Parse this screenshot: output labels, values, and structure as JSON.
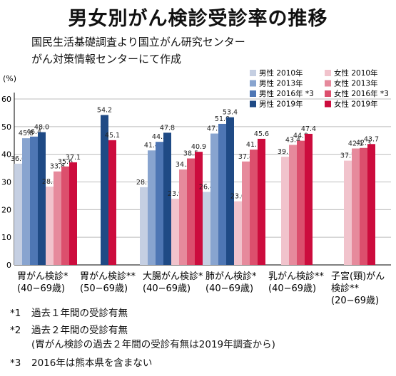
{
  "title": "男女別がん検診受診率の推移",
  "source_lines": [
    "国民生活基礎調査より国立がん研究センター",
    "がん対策情報センターにて作成"
  ],
  "footnotes": [
    {
      "mark": "*1",
      "lines": [
        "過去１年間の受診有無"
      ]
    },
    {
      "mark": "*2",
      "lines": [
        "過去２年間の受診有無",
        "(胃がん検診の過去２年間の受診有無は2019年調査から)"
      ]
    },
    {
      "mark": "*3",
      "lines": [
        "2016年は熊本県を含まない"
      ]
    }
  ],
  "chart_data": {
    "type": "bar",
    "ylabel": "(%)",
    "ylim": [
      0,
      60
    ],
    "yticks": [
      0,
      10,
      20,
      30,
      40,
      50,
      60
    ],
    "grid": true,
    "legend_position": "top-right",
    "categories": [
      {
        "lines": [
          "胃がん検診*",
          "(40−69歳)"
        ]
      },
      {
        "lines": [
          "胃がん検診**",
          "(50−69歳)"
        ]
      },
      {
        "lines": [
          "大腸がん検診*",
          "(40−69歳)"
        ]
      },
      {
        "lines": [
          "肺がん検診*",
          "(40−69歳)"
        ]
      },
      {
        "lines": [
          "乳がん検診**",
          "(40−69歳)"
        ]
      },
      {
        "lines": [
          "子宮(頸)がん",
          "検診**",
          "(20−69歳)"
        ]
      }
    ],
    "series": [
      {
        "name": "男性 2010年",
        "sex": "male",
        "color": "#c5cfe2",
        "values": [
          36.6,
          null,
          28.1,
          26.4,
          null,
          null
        ],
        "labels": [
          "36.6",
          "",
          "28.1",
          "26.4",
          "",
          ""
        ]
      },
      {
        "name": "男性 2013年",
        "sex": "male",
        "color": "#88a4cf",
        "values": [
          45.8,
          null,
          41.4,
          47.5,
          null,
          null
        ],
        "labels": [
          "45.8",
          "",
          "41.4",
          "47.5",
          "",
          ""
        ]
      },
      {
        "name": "男性 2016年 *3",
        "sex": "male",
        "color": "#4e76b4",
        "values": [
          46.4,
          null,
          44.5,
          51.0,
          null,
          null
        ],
        "labels": [
          "46.4",
          "",
          "44.5",
          "51.0",
          "",
          ""
        ]
      },
      {
        "name": "男性 2019年",
        "sex": "male",
        "color": "#1f4a85",
        "values": [
          48.0,
          54.2,
          47.8,
          53.4,
          null,
          null
        ],
        "labels": [
          "48.0",
          "54.2",
          "47.8",
          "53.4",
          "",
          ""
        ]
      },
      {
        "name": "女性 2010年",
        "sex": "female",
        "color": "#f1c3cc",
        "values": [
          28.3,
          null,
          23.9,
          23.0,
          39.1,
          37.7
        ],
        "labels": [
          "28.3",
          "",
          "23.9",
          "23.0",
          "39.1",
          "37.7"
        ]
      },
      {
        "name": "女性 2013年",
        "sex": "female",
        "color": "#e68a9c",
        "values": [
          33.8,
          null,
          34.5,
          37.4,
          43.4,
          42.1
        ],
        "labels": [
          "33.8",
          "",
          "34.5",
          "37.4",
          "43.4",
          "42.1"
        ]
      },
      {
        "name": "女性 2016年 *3",
        "sex": "female",
        "color": "#dc4f6d",
        "values": [
          35.6,
          null,
          38.5,
          41.7,
          44.9,
          42.3
        ],
        "labels": [
          "35.6",
          "",
          "38.5",
          "41.7",
          "44.9",
          "42.3"
        ]
      },
      {
        "name": "女性 2019年",
        "sex": "female",
        "color": "#cc0c3d",
        "values": [
          37.1,
          45.1,
          40.9,
          45.6,
          47.4,
          43.7
        ],
        "labels": [
          "37.1",
          "45.1",
          "40.9",
          "45.6",
          "47.4",
          "43.7"
        ]
      }
    ]
  }
}
